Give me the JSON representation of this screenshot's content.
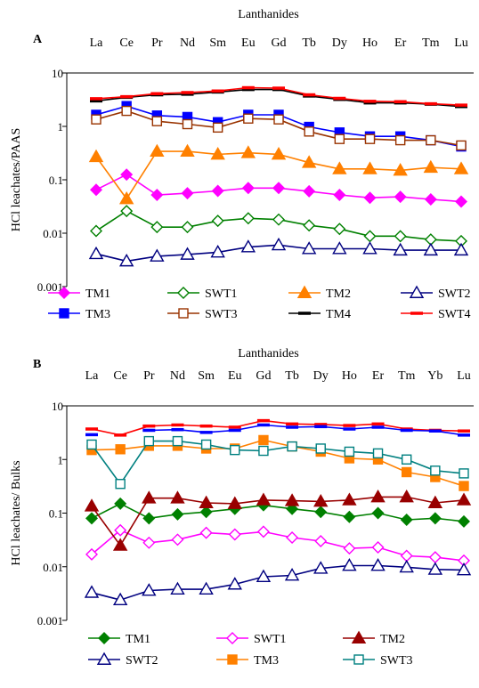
{
  "chart_data": [
    {
      "type": "line",
      "panel_label": "A",
      "title": "Lanthanides",
      "ylabel": "HCl leachates/PAAS",
      "yscale": "log",
      "ylim": [
        0.001,
        10
      ],
      "yticks": [
        "0.001",
        "0.01",
        "0.1",
        "1",
        "10"
      ],
      "ytick_values": [
        0.001,
        0.01,
        0.1,
        1,
        10
      ],
      "categories": [
        "La",
        "Ce",
        "Pr",
        "Nd",
        "Sm",
        "Eu",
        "Gd",
        "Tb",
        "Dy",
        "Ho",
        "Er",
        "Tm",
        "Lu"
      ],
      "legend_position": "bottom",
      "series": [
        {
          "name": "TM1",
          "color": "#ff00ff",
          "marker": "diamond",
          "filled": true,
          "values": [
            0.065,
            0.125,
            0.052,
            0.056,
            0.062,
            0.07,
            0.07,
            0.061,
            0.052,
            0.046,
            0.048,
            0.043,
            0.039
          ]
        },
        {
          "name": "SWT1",
          "color": "#008000",
          "marker": "diamond",
          "filled": false,
          "values": [
            0.011,
            0.026,
            0.013,
            0.013,
            0.017,
            0.019,
            0.018,
            0.014,
            0.012,
            0.0088,
            0.0088,
            0.0076,
            0.0071
          ]
        },
        {
          "name": "TM2",
          "color": "#ff8000",
          "marker": "triangle",
          "filled": true,
          "values": [
            0.27,
            0.044,
            0.34,
            0.34,
            0.3,
            0.32,
            0.3,
            0.21,
            0.16,
            0.16,
            0.15,
            0.17,
            0.16
          ]
        },
        {
          "name": "SWT2",
          "color": "#000080",
          "marker": "triangle",
          "filled": false,
          "values": [
            0.0041,
            0.003,
            0.0037,
            0.004,
            0.0044,
            0.0055,
            0.006,
            0.0051,
            0.0051,
            0.0051,
            0.0048,
            0.0048,
            0.0048
          ]
        },
        {
          "name": "TM3",
          "color": "#0000ff",
          "marker": "square",
          "filled": true,
          "values": [
            1.65,
            2.4,
            1.6,
            1.5,
            1.2,
            1.65,
            1.65,
            0.98,
            0.77,
            0.65,
            0.65,
            0.55,
            0.42
          ]
        },
        {
          "name": "SWT3",
          "color": "#993300",
          "marker": "square",
          "filled": false,
          "values": [
            1.35,
            1.95,
            1.25,
            1.1,
            0.95,
            1.4,
            1.35,
            0.8,
            0.58,
            0.58,
            0.55,
            0.55,
            0.44
          ]
        },
        {
          "name": "TM4",
          "color": "#000000",
          "marker": "dash",
          "filled": true,
          "values": [
            3.0,
            3.5,
            3.9,
            4.0,
            4.4,
            4.9,
            4.9,
            3.7,
            3.2,
            2.75,
            2.75,
            2.6,
            2.35
          ]
        },
        {
          "name": "SWT4",
          "color": "#ff0000",
          "marker": "dash",
          "filled": true,
          "values": [
            3.3,
            3.6,
            4.1,
            4.3,
            4.6,
            5.3,
            5.2,
            3.9,
            3.35,
            2.95,
            2.9,
            2.65,
            2.5
          ]
        }
      ]
    },
    {
      "type": "line",
      "panel_label": "B",
      "title": "Lanthanides",
      "ylabel": "HCl leachates/ Bulks",
      "yscale": "log",
      "ylim": [
        0.001,
        10
      ],
      "yticks": [
        "0.001",
        "0.01",
        "0.1",
        "1",
        "10"
      ],
      "ytick_values": [
        0.001,
        0.01,
        0.1,
        1,
        10
      ],
      "categories": [
        "La",
        "Ce",
        "Pr",
        "Nd",
        "Sm",
        "Eu",
        "Gd",
        "Tb",
        "Dy",
        "Ho",
        "Er",
        "Tm",
        "Yb",
        "Lu"
      ],
      "legend_position": "bottom",
      "series": [
        {
          "name": "TM1",
          "color": "#008000",
          "marker": "diamond",
          "filled": true,
          "values": [
            0.08,
            0.15,
            0.08,
            0.095,
            0.105,
            0.12,
            0.14,
            0.12,
            0.105,
            0.085,
            0.1,
            0.075,
            0.08,
            0.07
          ]
        },
        {
          "name": "SWT1",
          "color": "#ff00ff",
          "marker": "diamond",
          "filled": false,
          "values": [
            0.017,
            0.048,
            0.028,
            0.032,
            0.043,
            0.04,
            0.045,
            0.035,
            0.03,
            0.022,
            0.023,
            0.016,
            0.015,
            0.013
          ]
        },
        {
          "name": "TM2",
          "color": "#990000",
          "marker": "triangle",
          "filled": true,
          "values": [
            0.135,
            0.025,
            0.19,
            0.19,
            0.155,
            0.15,
            0.175,
            0.17,
            0.165,
            0.175,
            0.2,
            0.2,
            0.155,
            0.175
          ]
        },
        {
          "name": "SWT2",
          "color": "#000080",
          "marker": "triangle",
          "filled": false,
          "values": [
            0.0033,
            0.0024,
            0.0036,
            0.0038,
            0.0038,
            0.0047,
            0.0065,
            0.0069,
            0.0093,
            0.0105,
            0.0105,
            0.0098,
            0.0089,
            0.0087
          ]
        },
        {
          "name": "TM3",
          "color": "#ff8000",
          "marker": "square",
          "filled": true,
          "values": [
            1.5,
            1.55,
            1.8,
            1.8,
            1.6,
            1.6,
            2.3,
            1.75,
            1.4,
            1.05,
            1.0,
            0.58,
            0.47,
            0.32
          ]
        },
        {
          "name": "SWT3",
          "color": "#008080",
          "marker": "square",
          "filled": false,
          "values": [
            1.9,
            0.35,
            2.2,
            2.2,
            1.9,
            1.5,
            1.45,
            1.75,
            1.6,
            1.4,
            1.3,
            1.0,
            0.62,
            0.55
          ]
        },
        {
          "name": "",
          "color": "#ff0000",
          "marker": "dash",
          "filled": true,
          "show_in_legend": false,
          "values": [
            3.7,
            2.85,
            4.2,
            4.4,
            4.2,
            4.0,
            5.3,
            4.6,
            4.5,
            4.3,
            4.6,
            3.7,
            3.5,
            3.4
          ]
        },
        {
          "name": "",
          "color": "#0000ff",
          "marker": "dash",
          "filled": true,
          "show_in_legend": false,
          "values": [
            2.9,
            null,
            3.5,
            3.6,
            3.2,
            3.5,
            4.4,
            4.0,
            4.1,
            3.7,
            4.0,
            3.5,
            3.4,
            2.85
          ]
        }
      ]
    }
  ]
}
